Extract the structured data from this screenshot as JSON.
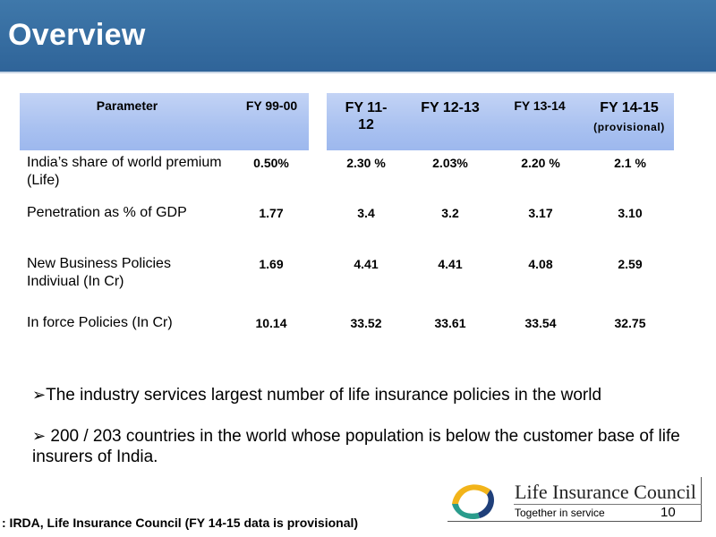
{
  "header": {
    "title": "Overview"
  },
  "table": {
    "columns": [
      {
        "label": "Parameter",
        "sub": ""
      },
      {
        "label": "FY 99-00",
        "sub": ""
      },
      {
        "label": "FY 11-\n12",
        "sub": ""
      },
      {
        "label": "FY 12-13",
        "sub": ""
      },
      {
        "label": "FY 13-14",
        "sub": ""
      },
      {
        "label": "FY 14-15",
        "sub": "(provisional)"
      }
    ],
    "rows": [
      {
        "parameter": "India’s share of world premium (Life)",
        "values": [
          "0.50%",
          "2.30 %",
          "2.03%",
          "2.20 %",
          "2.1 %"
        ]
      },
      {
        "parameter": "Penetration as % of GDP",
        "values": [
          "1.77",
          "3.4",
          "3.2",
          "3.17",
          "3.10"
        ]
      },
      {
        "parameter": "New Business Policies Indiviual (In Cr)",
        "values": [
          "1.69",
          "4.41",
          "4.41",
          "4.08",
          "2.59"
        ]
      },
      {
        "parameter": "In force Policies (In Cr)",
        "values": [
          "10.14",
          "33.52",
          "33.61",
          "33.54",
          "32.75"
        ]
      }
    ]
  },
  "bullets": [
    "The industry services largest number of life insurance policies in the world",
    " 200 / 203 countries in the world whose population is below the customer base of life    insurers of India."
  ],
  "footer": {
    "logo_name": "Life Insurance Council",
    "tagline": "Together in service",
    "page_number": "10",
    "source": ": IRDA,  Life Insurance Council  (FY 14-15 data is provisional)"
  },
  "colors": {
    "header_bg": "#3a72a6",
    "table_header_bg": "#a9c1f0",
    "logo_teal": "#2a9c8c",
    "logo_yellow": "#f2b41a",
    "logo_navy": "#1f3f7a"
  }
}
